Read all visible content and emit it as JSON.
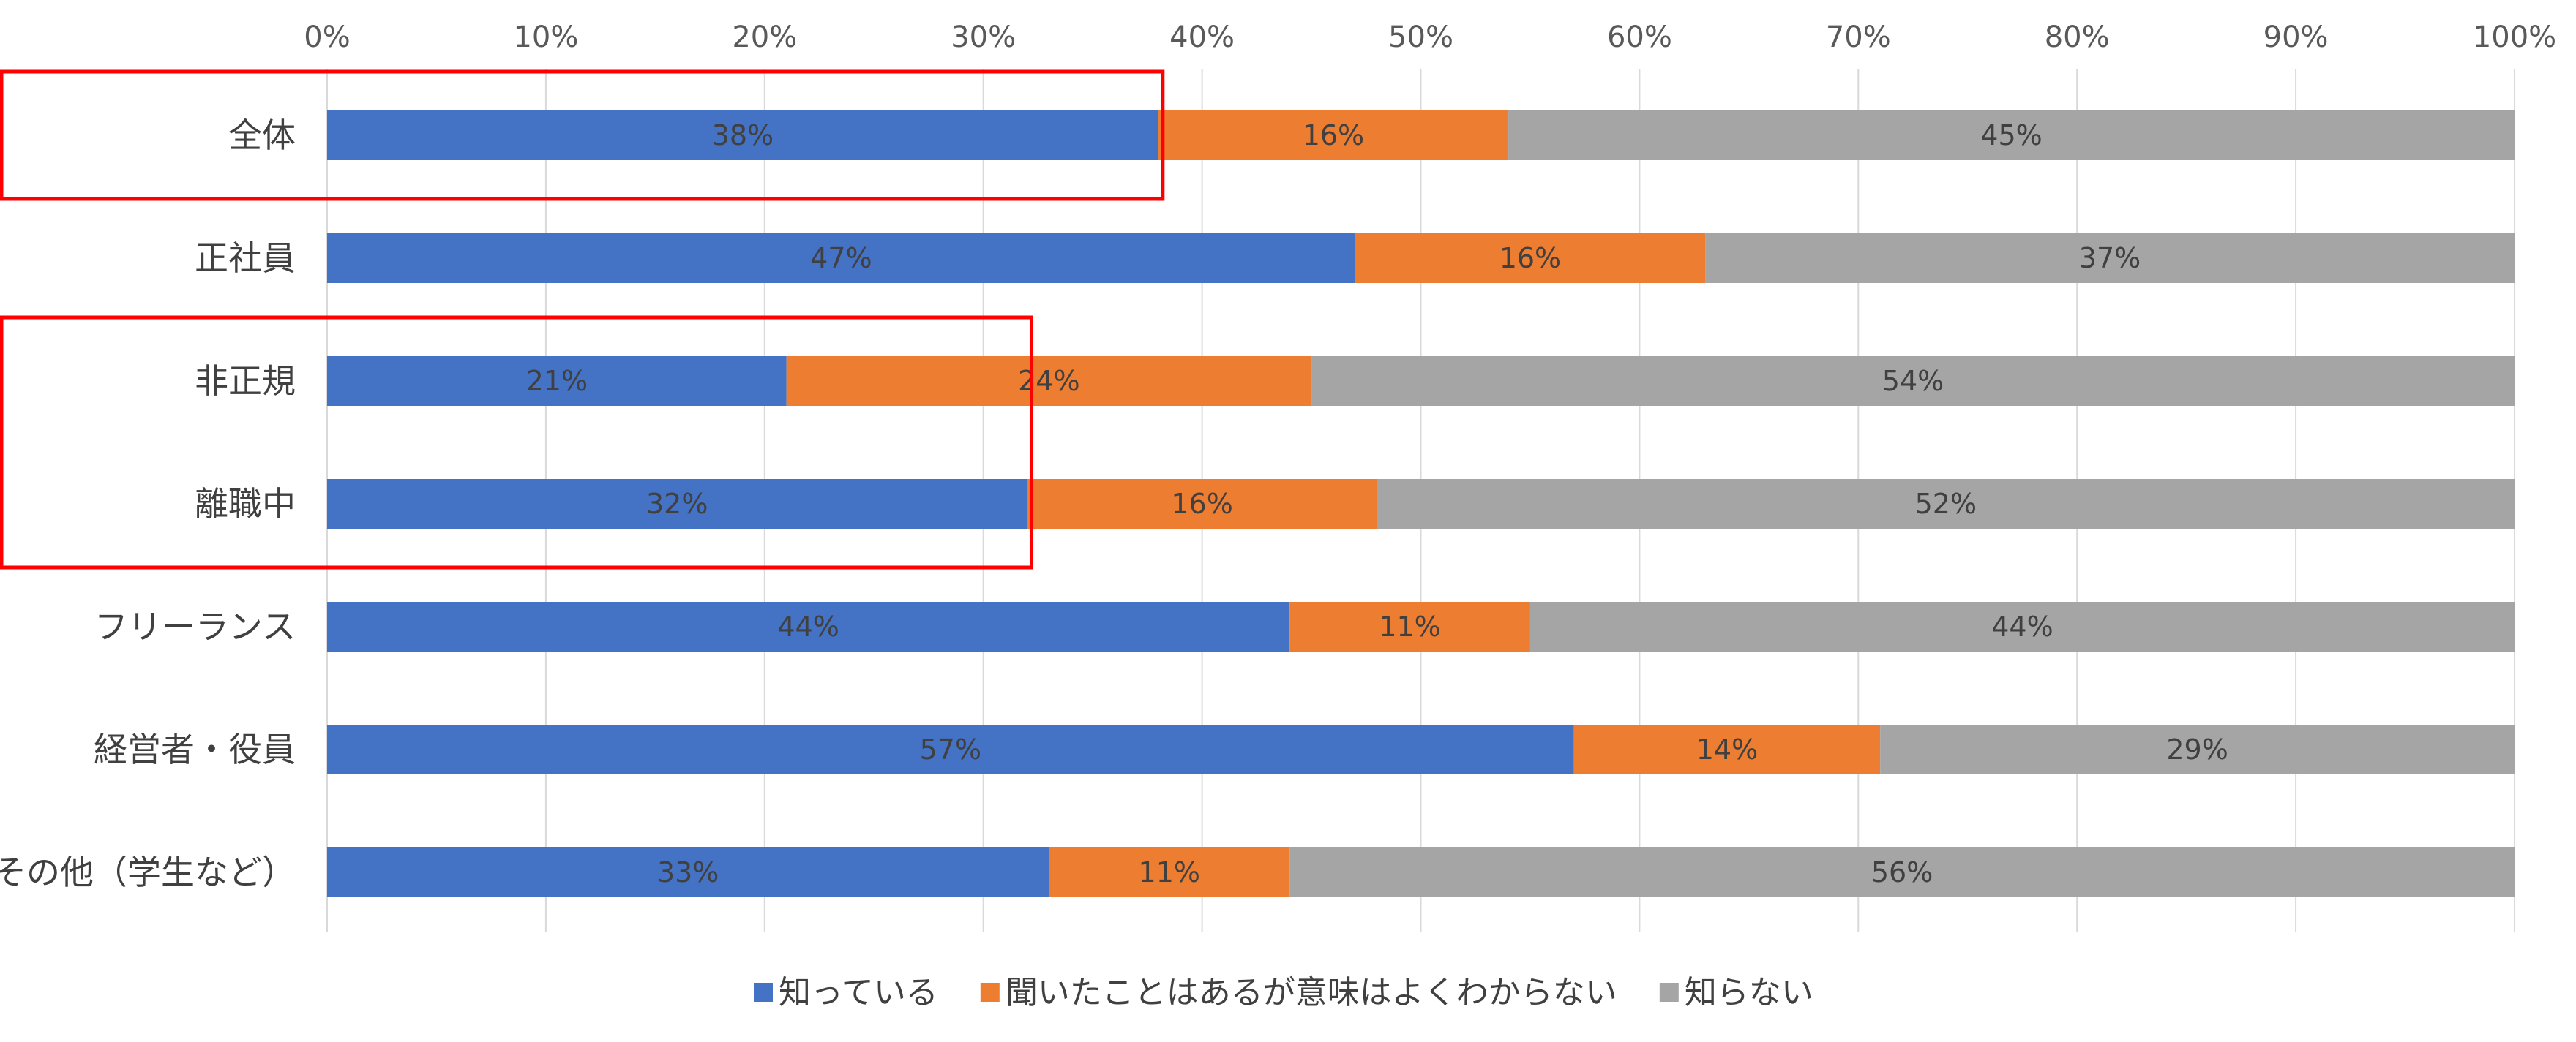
{
  "chart_data": {
    "type": "bar",
    "orientation": "horizontal",
    "stacked": true,
    "percent_scale": true,
    "categories": [
      "全体",
      "正社員",
      "非正規",
      "離職中",
      "フリーランス",
      "経営者・役員",
      "その他（学生など）"
    ],
    "series": [
      {
        "name": "知っている",
        "values": [
          38,
          47,
          21,
          32,
          44,
          57,
          33
        ],
        "labels": [
          "38%",
          "47%",
          "21%",
          "32%",
          "44%",
          "57%",
          "33%"
        ],
        "color": "#4472C4"
      },
      {
        "name": "聞いたことはあるが意味はよくわからない",
        "values": [
          16,
          16,
          24,
          16,
          11,
          14,
          11
        ],
        "labels": [
          "16%",
          "16%",
          "24%",
          "16%",
          "11%",
          "14%",
          "11%"
        ],
        "color": "#ED7D31"
      },
      {
        "name": "知らない",
        "values": [
          45,
          37,
          54,
          52,
          44,
          29,
          56
        ],
        "labels": [
          "45%",
          "37%",
          "54%",
          "52%",
          "44%",
          "29%",
          "56%"
        ],
        "color": "#A5A5A5"
      }
    ],
    "xlim": [
      0,
      100
    ],
    "xticks": [
      "0%",
      "10%",
      "20%",
      "30%",
      "40%",
      "50%",
      "60%",
      "70%",
      "80%",
      "90%",
      "100%"
    ],
    "grid": true,
    "legend": "bottom",
    "highlight_color": "#FF0000",
    "highlights": [
      {
        "categories": [
          "全体"
        ]
      },
      {
        "categories": [
          "非正規",
          "離職中"
        ]
      }
    ]
  }
}
